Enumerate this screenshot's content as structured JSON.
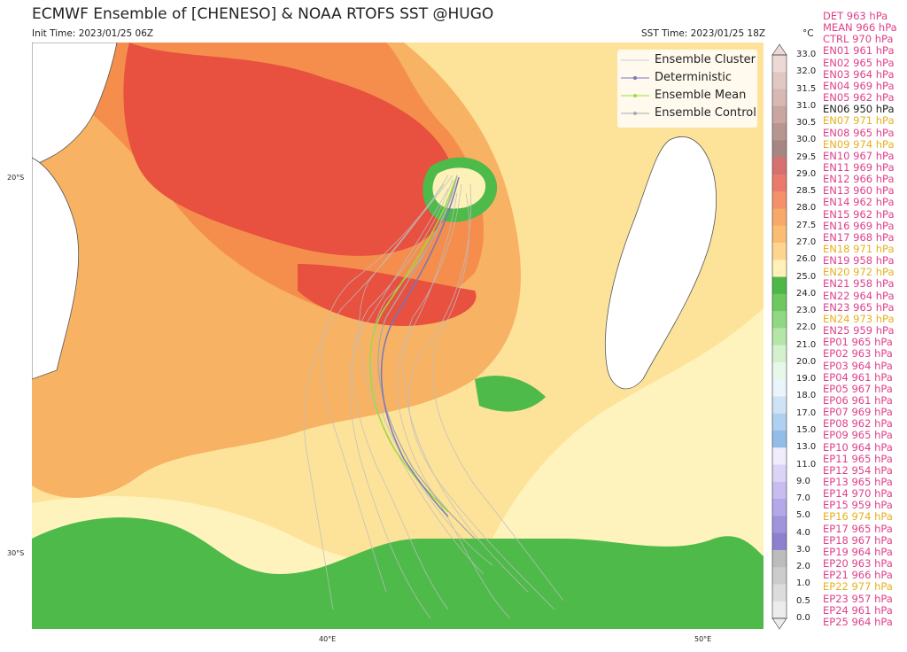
{
  "title": "ECMWF Ensemble of [CHENESO] & NOAA RTOFS SST @HUGO",
  "init_time": "Init Time: 2023/01/25 06Z",
  "sst_time": "SST Time: 2023/01/25 18Z",
  "unit": "°C",
  "lat_labels": [
    "20°S",
    "30°S"
  ],
  "lon_labels": [
    "40°E",
    "50°E"
  ],
  "legend": [
    {
      "label": "Ensemble Cluster",
      "color": "#cccccc",
      "marker": false
    },
    {
      "label": "Deterministic",
      "color": "#7777bb",
      "marker": true
    },
    {
      "label": "Ensemble Mean",
      "color": "#99dd44",
      "marker": true
    },
    {
      "label": "Ensemble Control",
      "color": "#aaaaaa",
      "marker": true
    }
  ],
  "colorbar_ticks": [
    "33.0",
    "32.0",
    "31.5",
    "31.0",
    "30.5",
    "30.0",
    "29.5",
    "29.0",
    "28.5",
    "28.0",
    "27.5",
    "27.0",
    "26.0",
    "25.0",
    "24.0",
    "23.0",
    "22.0",
    "21.0",
    "20.0",
    "19.0",
    "18.0",
    "17.0",
    "15.0",
    "13.0",
    "11.0",
    "9.0",
    "7.0",
    "5.0",
    "4.0",
    "3.0",
    "2.0",
    "1.0",
    "0.5",
    "0.0"
  ],
  "colorbar_colors": [
    "#ecd9d6",
    "#e2c8c2",
    "#d8b8b2",
    "#c9a6a0",
    "#b99590",
    "#a58682",
    "#d97070",
    "#ea7a6a",
    "#f4906a",
    "#f8a868",
    "#fbbd72",
    "#fdd58e",
    "#fff1b8",
    "#4db848",
    "#6dc860",
    "#90d882",
    "#b4e6a8",
    "#d4f0cc",
    "#e8f8e8",
    "#eaf4fc",
    "#cfe3f6",
    "#b0d0f0",
    "#92bde8",
    "#f0ecfc",
    "#dcd4f6",
    "#c8bcf0",
    "#b4a8e8",
    "#a094dc",
    "#8c80d0",
    "#bcbcbc",
    "#cccccc",
    "#dcdcdc",
    "#ececec"
  ],
  "members": [
    {
      "label": "DET 963 hPa",
      "color": "#e0408a"
    },
    {
      "label": "MEAN 966 hPa",
      "color": "#e0408a"
    },
    {
      "label": "CTRL 970 hPa",
      "color": "#e0408a"
    },
    {
      "label": "EN01 961 hPa",
      "color": "#e0408a"
    },
    {
      "label": "EN02 965 hPa",
      "color": "#e0408a"
    },
    {
      "label": "EN03 964 hPa",
      "color": "#e0408a"
    },
    {
      "label": "EN04 969 hPa",
      "color": "#e0408a"
    },
    {
      "label": "EN05 962 hPa",
      "color": "#e0408a"
    },
    {
      "label": "EN06 950 hPa",
      "color": "#222222"
    },
    {
      "label": "EN07 971 hPa",
      "color": "#e6b020"
    },
    {
      "label": "EN08 965 hPa",
      "color": "#e0408a"
    },
    {
      "label": "EN09 974 hPa",
      "color": "#e6b020"
    },
    {
      "label": "EN10 967 hPa",
      "color": "#e0408a"
    },
    {
      "label": "EN11 969 hPa",
      "color": "#e0408a"
    },
    {
      "label": "EN12 966 hPa",
      "color": "#e0408a"
    },
    {
      "label": "EN13 960 hPa",
      "color": "#e0408a"
    },
    {
      "label": "EN14 962 hPa",
      "color": "#e0408a"
    },
    {
      "label": "EN15 962 hPa",
      "color": "#e0408a"
    },
    {
      "label": "EN16 969 hPa",
      "color": "#e0408a"
    },
    {
      "label": "EN17 968 hPa",
      "color": "#e0408a"
    },
    {
      "label": "EN18 971 hPa",
      "color": "#e6b020"
    },
    {
      "label": "EN19 958 hPa",
      "color": "#e0408a"
    },
    {
      "label": "EN20 972 hPa",
      "color": "#e6b020"
    },
    {
      "label": "EN21 958 hPa",
      "color": "#e0408a"
    },
    {
      "label": "EN22 964 hPa",
      "color": "#e0408a"
    },
    {
      "label": "EN23 965 hPa",
      "color": "#e0408a"
    },
    {
      "label": "EN24 973 hPa",
      "color": "#e6b020"
    },
    {
      "label": "EN25 959 hPa",
      "color": "#e0408a"
    },
    {
      "label": "EP01 965 hPa",
      "color": "#e0408a"
    },
    {
      "label": "EP02 963 hPa",
      "color": "#e0408a"
    },
    {
      "label": "EP03 964 hPa",
      "color": "#e0408a"
    },
    {
      "label": "EP04 961 hPa",
      "color": "#e0408a"
    },
    {
      "label": "EP05 967 hPa",
      "color": "#e0408a"
    },
    {
      "label": "EP06 961 hPa",
      "color": "#e0408a"
    },
    {
      "label": "EP07 969 hPa",
      "color": "#e0408a"
    },
    {
      "label": "EP08 962 hPa",
      "color": "#e0408a"
    },
    {
      "label": "EP09 965 hPa",
      "color": "#e0408a"
    },
    {
      "label": "EP10 964 hPa",
      "color": "#e0408a"
    },
    {
      "label": "EP11 965 hPa",
      "color": "#e0408a"
    },
    {
      "label": "EP12 954 hPa",
      "color": "#e0408a"
    },
    {
      "label": "EP13 965 hPa",
      "color": "#e0408a"
    },
    {
      "label": "EP14 970 hPa",
      "color": "#e0408a"
    },
    {
      "label": "EP15 959 hPa",
      "color": "#e0408a"
    },
    {
      "label": "EP16 974 hPa",
      "color": "#e6b020"
    },
    {
      "label": "EP17 965 hPa",
      "color": "#e0408a"
    },
    {
      "label": "EP18 967 hPa",
      "color": "#e0408a"
    },
    {
      "label": "EP19 964 hPa",
      "color": "#e0408a"
    },
    {
      "label": "EP20 963 hPa",
      "color": "#e0408a"
    },
    {
      "label": "EP21 966 hPa",
      "color": "#e0408a"
    },
    {
      "label": "EP22 977 hPa",
      "color": "#e6b020"
    },
    {
      "label": "EP23 957 hPa",
      "color": "#e0408a"
    },
    {
      "label": "EP24 961 hPa",
      "color": "#e0408a"
    },
    {
      "label": "EP25 964 hPa",
      "color": "#e0408a"
    }
  ]
}
